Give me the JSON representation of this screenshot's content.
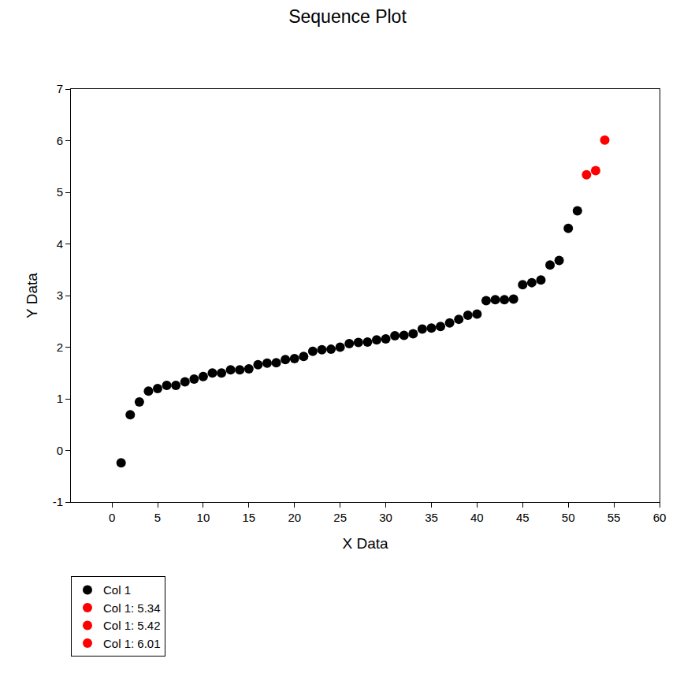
{
  "chart_data": {
    "type": "scatter",
    "title": "Sequence Plot",
    "x_label": "X Data",
    "y_label": "Y Data",
    "xlim": [
      -4.5,
      60
    ],
    "xticks": [
      0,
      5,
      10,
      15,
      20,
      25,
      30,
      35,
      40,
      45,
      50,
      55,
      60
    ],
    "ylim": [
      -1,
      7
    ],
    "yticks": [
      -1,
      0,
      1,
      2,
      3,
      4,
      5,
      6,
      7
    ],
    "grid": false,
    "legend": "bottom left",
    "marker": "circle",
    "series": [
      {
        "name": "Col 1",
        "color": "#000000",
        "x": [
          1,
          2,
          3,
          4,
          5,
          6,
          7,
          8,
          9,
          10,
          11,
          12,
          13,
          14,
          15,
          16,
          17,
          18,
          19,
          20,
          21,
          22,
          23,
          24,
          25,
          26,
          27,
          28,
          29,
          30,
          31,
          32,
          33,
          34,
          35,
          36,
          37,
          38,
          39,
          40,
          41,
          42,
          43,
          44,
          45,
          46,
          47,
          48,
          49,
          50,
          51
        ],
        "values": [
          -0.24,
          0.69,
          0.94,
          1.15,
          1.2,
          1.26,
          1.26,
          1.33,
          1.38,
          1.43,
          1.5,
          1.5,
          1.56,
          1.56,
          1.58,
          1.66,
          1.69,
          1.7,
          1.76,
          1.78,
          1.82,
          1.92,
          1.95,
          1.96,
          2.0,
          2.07,
          2.09,
          2.1,
          2.14,
          2.16,
          2.22,
          2.23,
          2.26,
          2.35,
          2.37,
          2.4,
          2.47,
          2.54,
          2.62,
          2.64,
          2.9,
          2.92,
          2.92,
          2.93,
          3.21,
          3.25,
          3.3,
          3.59,
          3.68,
          4.3,
          4.64
        ]
      },
      {
        "name": "Col 1: 5.34",
        "color": "#ff0000",
        "x": [
          52
        ],
        "values": [
          5.34
        ]
      },
      {
        "name": "Col 1: 5.42",
        "color": "#ff0000",
        "x": [
          53
        ],
        "values": [
          5.42
        ]
      },
      {
        "name": "Col 1: 6.01",
        "color": "#ff0000",
        "x": [
          54
        ],
        "values": [
          6.01
        ]
      }
    ]
  }
}
